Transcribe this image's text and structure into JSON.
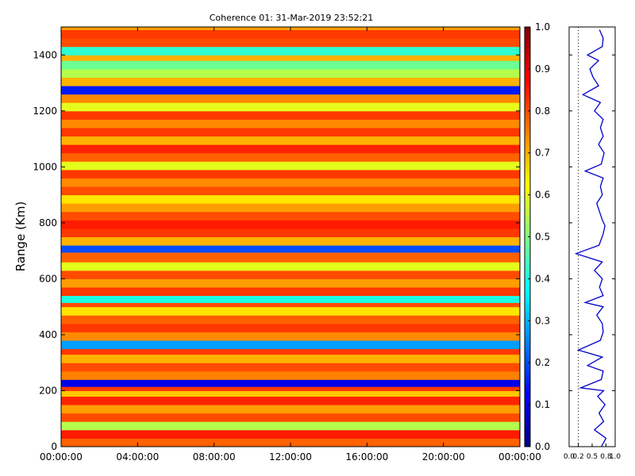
{
  "chart_data": [
    {
      "type": "heatmap",
      "title": "Coherence 01: 31-Mar-2019 23:52:21",
      "xlabel": "",
      "ylabel": "Range (Km)",
      "x_ticks": [
        "00:00:00",
        "04:00:00",
        "08:00:00",
        "12:00:00",
        "16:00:00",
        "20:00:00",
        "00:00:00"
      ],
      "y_ticks": [
        "0",
        "200",
        "400",
        "600",
        "800",
        "1000",
        "1200",
        "1400"
      ],
      "ylim": [
        0,
        1500
      ],
      "colormap": "jet",
      "colorbar": {
        "ticks": [
          "0.0",
          "0.1",
          "0.2",
          "0.3",
          "0.4",
          "0.5",
          "0.6",
          "0.7",
          "0.8",
          "0.9",
          "1.0"
        ],
        "range": [
          0,
          1
        ]
      },
      "range_profile_km": [
        [
          0,
          0.78
        ],
        [
          30,
          0.85
        ],
        [
          60,
          0.55
        ],
        [
          90,
          0.8
        ],
        [
          120,
          0.72
        ],
        [
          150,
          0.84
        ],
        [
          180,
          0.68
        ],
        [
          200,
          0.82
        ],
        [
          215,
          0.1
        ],
        [
          240,
          0.75
        ],
        [
          270,
          0.8
        ],
        [
          300,
          0.7
        ],
        [
          330,
          0.82
        ],
        [
          350,
          0.28
        ],
        [
          380,
          0.74
        ],
        [
          410,
          0.82
        ],
        [
          440,
          0.78
        ],
        [
          470,
          0.65
        ],
        [
          500,
          0.8
        ],
        [
          515,
          0.4
        ],
        [
          540,
          0.82
        ],
        [
          570,
          0.72
        ],
        [
          600,
          0.8
        ],
        [
          630,
          0.6
        ],
        [
          660,
          0.78
        ],
        [
          695,
          0.2
        ],
        [
          720,
          0.7
        ],
        [
          750,
          0.82
        ],
        [
          780,
          0.85
        ],
        [
          810,
          0.8
        ],
        [
          840,
          0.72
        ],
        [
          870,
          0.65
        ],
        [
          900,
          0.8
        ],
        [
          930,
          0.74
        ],
        [
          960,
          0.82
        ],
        [
          990,
          0.6
        ],
        [
          1020,
          0.78
        ],
        [
          1050,
          0.84
        ],
        [
          1080,
          0.7
        ],
        [
          1110,
          0.82
        ],
        [
          1140,
          0.74
        ],
        [
          1170,
          0.82
        ],
        [
          1200,
          0.6
        ],
        [
          1230,
          0.74
        ],
        [
          1260,
          0.15
        ],
        [
          1290,
          0.7
        ],
        [
          1320,
          0.55
        ],
        [
          1350,
          0.48
        ],
        [
          1380,
          0.7
        ],
        [
          1400,
          0.42
        ],
        [
          1430,
          0.8
        ],
        [
          1460,
          0.82
        ],
        [
          1490,
          0.72
        ]
      ]
    },
    {
      "type": "line",
      "title": "",
      "x_ticks": [
        "0.0",
        "0.2",
        "0.5",
        "0.8",
        "1.0"
      ],
      "xlim": [
        0,
        1
      ],
      "ylim": [
        0,
        1500
      ],
      "color": "#0000cc",
      "series": [
        {
          "values": [
            [
              0,
              0.7
            ],
            [
              30,
              0.8
            ],
            [
              60,
              0.55
            ],
            [
              90,
              0.75
            ],
            [
              120,
              0.65
            ],
            [
              150,
              0.78
            ],
            [
              180,
              0.62
            ],
            [
              200,
              0.75
            ],
            [
              210,
              0.25
            ],
            [
              240,
              0.7
            ],
            [
              270,
              0.74
            ],
            [
              290,
              0.4
            ],
            [
              320,
              0.72
            ],
            [
              345,
              0.2
            ],
            [
              380,
              0.68
            ],
            [
              410,
              0.74
            ],
            [
              440,
              0.72
            ],
            [
              470,
              0.6
            ],
            [
              500,
              0.74
            ],
            [
              515,
              0.35
            ],
            [
              540,
              0.74
            ],
            [
              570,
              0.66
            ],
            [
              600,
              0.72
            ],
            [
              630,
              0.55
            ],
            [
              660,
              0.72
            ],
            [
              690,
              0.15
            ],
            [
              720,
              0.65
            ],
            [
              760,
              0.74
            ],
            [
              790,
              0.78
            ],
            [
              810,
              0.72
            ],
            [
              840,
              0.66
            ],
            [
              870,
              0.6
            ],
            [
              900,
              0.72
            ],
            [
              930,
              0.68
            ],
            [
              960,
              0.74
            ],
            [
              985,
              0.35
            ],
            [
              1010,
              0.7
            ],
            [
              1050,
              0.76
            ],
            [
              1080,
              0.64
            ],
            [
              1110,
              0.74
            ],
            [
              1140,
              0.68
            ],
            [
              1170,
              0.74
            ],
            [
              1200,
              0.55
            ],
            [
              1230,
              0.68
            ],
            [
              1258,
              0.3
            ],
            [
              1290,
              0.64
            ],
            [
              1320,
              0.52
            ],
            [
              1350,
              0.45
            ],
            [
              1380,
              0.64
            ],
            [
              1400,
              0.4
            ],
            [
              1430,
              0.72
            ],
            [
              1460,
              0.74
            ],
            [
              1490,
              0.66
            ]
          ]
        }
      ]
    }
  ]
}
